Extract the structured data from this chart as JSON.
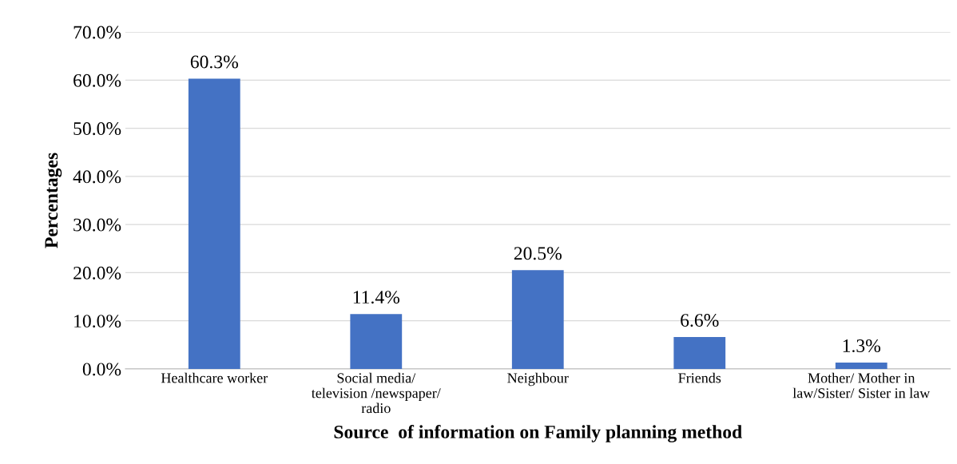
{
  "chart_data": {
    "type": "bar",
    "xlabel": "Source  of information on Family planning method",
    "ylabel": "Percentages",
    "categories": [
      "Healthcare worker",
      "Social media/\ntelevision /newspaper/\nradio",
      "Neighbour",
      "Friends",
      "Mother/ Mother in\nlaw/Sister/ Sister in law"
    ],
    "values": [
      60.3,
      11.4,
      20.5,
      6.6,
      1.3
    ],
    "value_labels": [
      "60.3%",
      "11.4%",
      "20.5%",
      "6.6%",
      "1.3%"
    ],
    "color": "#4472c4",
    "ylim": [
      0,
      70
    ],
    "yticks": [
      {
        "value": 0,
        "label": "0.0%"
      },
      {
        "value": 10,
        "label": "10.0%"
      },
      {
        "value": 20,
        "label": "20.0%"
      },
      {
        "value": 30,
        "label": "30.0%"
      },
      {
        "value": 40,
        "label": "40.0%"
      },
      {
        "value": 50,
        "label": "50.0%"
      },
      {
        "value": 60,
        "label": "60.0%"
      },
      {
        "value": 70,
        "label": "70.0%"
      }
    ],
    "grid": "y",
    "legend": false
  }
}
